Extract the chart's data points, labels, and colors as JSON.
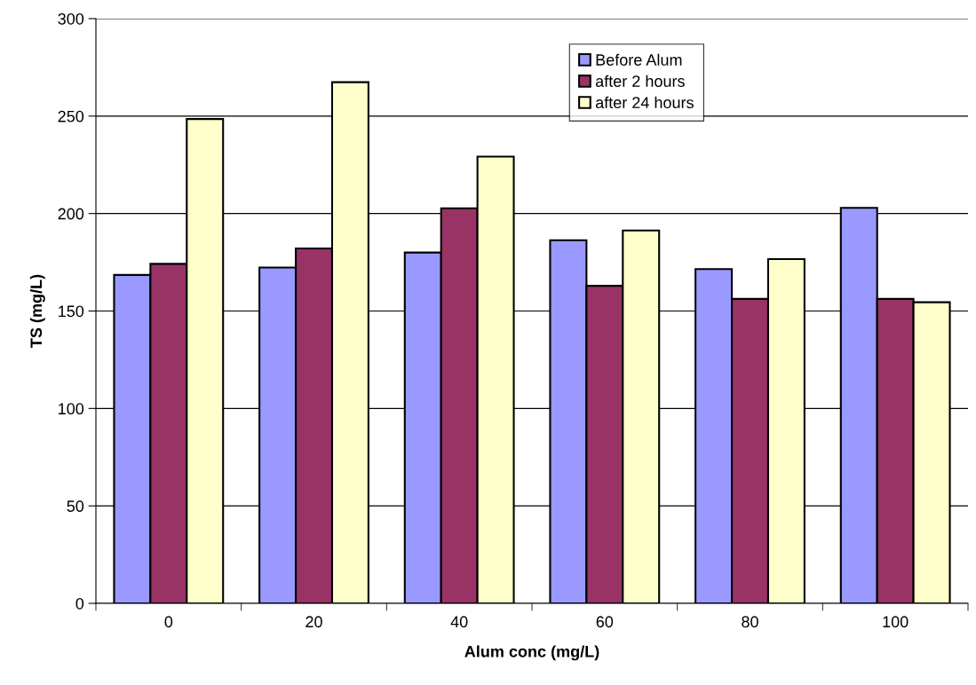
{
  "chart_data": {
    "type": "bar",
    "xlabel": "Alum conc (mg/L)",
    "ylabel": "TS (mg/L)",
    "categories": [
      "0",
      "20",
      "40",
      "60",
      "80",
      "100"
    ],
    "series": [
      {
        "name": "Before Alum",
        "color": "#9999ff",
        "values": [
          168.5,
          172.3,
          180,
          186.3,
          171.5,
          202.9
        ]
      },
      {
        "name": "after 2 hours",
        "color": "#993366",
        "values": [
          174.2,
          182.1,
          202.7,
          162.9,
          156.2,
          156.2
        ]
      },
      {
        "name": "after 24 hours",
        "color": "#ffffcc",
        "values": [
          248.5,
          267.4,
          229.2,
          191.3,
          176.6,
          154.5
        ]
      }
    ],
    "ylim": [
      0,
      300
    ],
    "yticks": [
      0,
      50,
      100,
      150,
      200,
      250,
      300
    ],
    "grid": "y",
    "legend": "top"
  }
}
